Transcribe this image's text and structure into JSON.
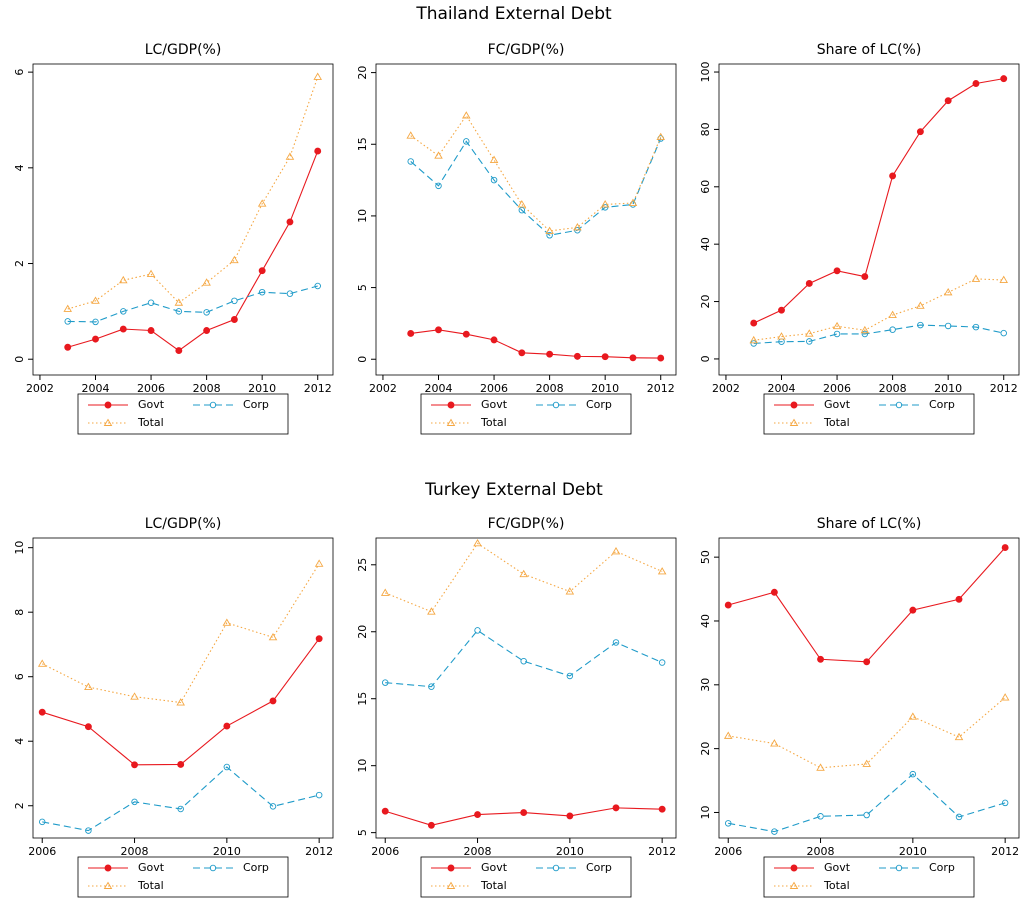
{
  "titles": [
    "Thailand External Debt",
    "Turkey External Debt"
  ],
  "chart_data": [
    {
      "type": "line",
      "title": "LC/GDP(%)",
      "x": [
        2003,
        2004,
        2005,
        2006,
        2007,
        2008,
        2009,
        2010,
        2011,
        2012
      ],
      "xlim": [
        2001.75,
        2012.55
      ],
      "xticks": [
        2002,
        2004,
        2006,
        2008,
        2010,
        2012
      ],
      "ylim": [
        -0.33,
        6.17
      ],
      "yticks": [
        0,
        2,
        4,
        6
      ],
      "series": [
        {
          "name": "Govt",
          "color": "#e8191f",
          "style": "solid",
          "marker": "filled-circle",
          "values": [
            0.25,
            0.42,
            0.63,
            0.6,
            0.18,
            0.6,
            0.83,
            1.85,
            2.87,
            4.35
          ]
        },
        {
          "name": "Corp",
          "color": "#1f9bc9",
          "style": "dashed",
          "marker": "circle",
          "values": [
            0.79,
            0.78,
            1.0,
            1.18,
            1.0,
            0.98,
            1.22,
            1.4,
            1.37,
            1.53
          ]
        },
        {
          "name": "Total",
          "color": "#f5a742",
          "style": "dotted",
          "marker": "triangle",
          "values": [
            1.05,
            1.22,
            1.65,
            1.78,
            1.18,
            1.6,
            2.07,
            3.25,
            4.23,
            5.9
          ]
        }
      ]
    },
    {
      "type": "line",
      "title": "FC/GDP(%)",
      "x": [
        2003,
        2004,
        2005,
        2006,
        2007,
        2008,
        2009,
        2010,
        2011,
        2012
      ],
      "xlim": [
        2001.75,
        2012.55
      ],
      "xticks": [
        2002,
        2004,
        2006,
        2008,
        2010,
        2012
      ],
      "ylim": [
        -1.1,
        20.6
      ],
      "yticks": [
        0,
        5,
        10,
        15,
        20
      ],
      "series": [
        {
          "name": "Govt",
          "color": "#e8191f",
          "style": "solid",
          "marker": "filled-circle",
          "values": [
            1.8,
            2.05,
            1.75,
            1.35,
            0.45,
            0.35,
            0.2,
            0.18,
            0.1,
            0.08
          ]
        },
        {
          "name": "Corp",
          "color": "#1f9bc9",
          "style": "dashed",
          "marker": "circle",
          "values": [
            13.8,
            12.1,
            15.2,
            12.5,
            10.4,
            8.65,
            9.0,
            10.6,
            10.8,
            15.4
          ]
        },
        {
          "name": "Total",
          "color": "#f5a742",
          "style": "dotted",
          "marker": "triangle",
          "values": [
            15.6,
            14.2,
            17.0,
            13.9,
            10.8,
            8.95,
            9.2,
            10.8,
            10.9,
            15.5
          ]
        }
      ]
    },
    {
      "type": "line",
      "title": "Share of LC(%)",
      "x": [
        2003,
        2004,
        2005,
        2006,
        2007,
        2008,
        2009,
        2010,
        2011,
        2012
      ],
      "xlim": [
        2001.75,
        2012.55
      ],
      "xticks": [
        2002,
        2004,
        2006,
        2008,
        2010,
        2012
      ],
      "ylim": [
        -5.6,
        102.8
      ],
      "yticks": [
        0,
        20,
        40,
        60,
        80,
        100
      ],
      "series": [
        {
          "name": "Govt",
          "color": "#e8191f",
          "style": "solid",
          "marker": "filled-circle",
          "values": [
            12.5,
            17,
            26.3,
            30.7,
            28.7,
            63.8,
            79.2,
            90,
            96,
            97.7
          ]
        },
        {
          "name": "Corp",
          "color": "#1f9bc9",
          "style": "dashed",
          "marker": "circle",
          "values": [
            5.4,
            6,
            6.1,
            8.7,
            8.7,
            10.2,
            11.8,
            11.5,
            11.1,
            9.0
          ]
        },
        {
          "name": "Total",
          "color": "#f5a742",
          "style": "dotted",
          "marker": "triangle",
          "values": [
            6.5,
            7.8,
            8.8,
            11.4,
            10,
            15.3,
            18.5,
            23.2,
            27.9,
            27.5
          ]
        }
      ]
    },
    {
      "type": "line",
      "title": "LC/GDP(%)",
      "x": [
        2006,
        2007,
        2008,
        2009,
        2010,
        2011,
        2012
      ],
      "xlim": [
        2005.8,
        2012.3
      ],
      "xticks": [
        2006,
        2008,
        2010,
        2012
      ],
      "ylim": [
        1.0,
        10.3
      ],
      "yticks": [
        2,
        4,
        6,
        8,
        10
      ],
      "series": [
        {
          "name": "Govt",
          "color": "#e8191f",
          "style": "solid",
          "marker": "filled-circle",
          "values": [
            4.9,
            4.45,
            3.27,
            3.28,
            4.47,
            5.25,
            7.18
          ]
        },
        {
          "name": "Corp",
          "color": "#1f9bc9",
          "style": "dashed",
          "marker": "circle",
          "values": [
            1.5,
            1.23,
            2.12,
            1.9,
            3.2,
            1.98,
            2.33
          ]
        },
        {
          "name": "Total",
          "color": "#f5a742",
          "style": "dotted",
          "marker": "triangle",
          "values": [
            6.4,
            5.68,
            5.38,
            5.2,
            7.67,
            7.22,
            9.5
          ]
        }
      ]
    },
    {
      "type": "line",
      "title": "FC/GDP(%)",
      "x": [
        2006,
        2007,
        2008,
        2009,
        2010,
        2011,
        2012
      ],
      "xlim": [
        2005.8,
        2012.3
      ],
      "xticks": [
        2006,
        2008,
        2010,
        2012
      ],
      "ylim": [
        4.6,
        27
      ],
      "yticks": [
        5,
        10,
        15,
        20,
        25
      ],
      "series": [
        {
          "name": "Govt",
          "color": "#e8191f",
          "style": "solid",
          "marker": "filled-circle",
          "values": [
            6.6,
            5.55,
            6.35,
            6.5,
            6.25,
            6.85,
            6.75
          ]
        },
        {
          "name": "Corp",
          "color": "#1f9bc9",
          "style": "dashed",
          "marker": "circle",
          "values": [
            16.2,
            15.9,
            20.1,
            17.8,
            16.7,
            19.2,
            17.7
          ]
        },
        {
          "name": "Total",
          "color": "#f5a742",
          "style": "dotted",
          "marker": "triangle",
          "values": [
            22.9,
            21.5,
            26.6,
            24.3,
            23.0,
            26.0,
            24.5
          ]
        }
      ]
    },
    {
      "type": "line",
      "title": "Share of LC(%)",
      "x": [
        2006,
        2007,
        2008,
        2009,
        2010,
        2011,
        2012
      ],
      "xlim": [
        2005.8,
        2012.3
      ],
      "xticks": [
        2006,
        2008,
        2010,
        2012
      ],
      "ylim": [
        6,
        53
      ],
      "yticks": [
        10,
        20,
        30,
        40,
        50
      ],
      "series": [
        {
          "name": "Govt",
          "color": "#e8191f",
          "style": "solid",
          "marker": "filled-circle",
          "values": [
            42.5,
            44.5,
            34,
            33.6,
            41.7,
            43.4,
            51.5
          ]
        },
        {
          "name": "Corp",
          "color": "#1f9bc9",
          "style": "dashed",
          "marker": "circle",
          "values": [
            8.3,
            7,
            9.4,
            9.6,
            16,
            9.3,
            11.5
          ]
        },
        {
          "name": "Total",
          "color": "#f5a742",
          "style": "dotted",
          "marker": "triangle",
          "values": [
            22,
            20.8,
            17,
            17.6,
            25,
            21.8,
            28
          ]
        }
      ]
    }
  ]
}
